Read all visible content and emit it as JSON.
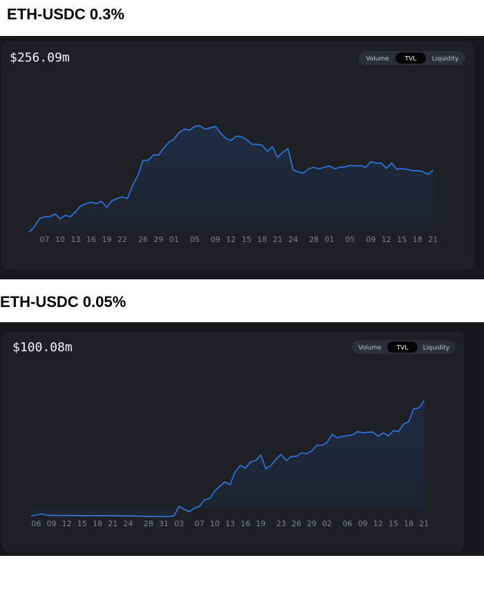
{
  "chart_data": [
    {
      "type": "area",
      "title": "ETH-USDC 0.3%",
      "headline": "$256.09m",
      "toggles": [
        "Volume",
        "TVL",
        "Liquidity"
      ],
      "color": "#2f7bea",
      "ylim": [
        80,
        400
      ],
      "categories": [
        null,
        null,
        null,
        "07",
        null,
        null,
        "10",
        null,
        null,
        "13",
        null,
        null,
        "16",
        null,
        null,
        "19",
        null,
        null,
        "22",
        null,
        null,
        null,
        "26",
        null,
        null,
        "29",
        null,
        null,
        "01",
        null,
        null,
        null,
        "05",
        null,
        null,
        null,
        "09",
        null,
        null,
        "12",
        null,
        null,
        "15",
        null,
        null,
        "18",
        null,
        null,
        "21",
        null,
        null,
        "24",
        null,
        null,
        null,
        "28",
        null,
        null,
        "01",
        null,
        null,
        null,
        "05",
        null,
        null,
        null,
        "09",
        null,
        null,
        "12",
        null,
        null,
        "15",
        null,
        null,
        "18",
        null,
        null,
        "21"
      ],
      "values": [
        124,
        135,
        153,
        157,
        157,
        163,
        153,
        160,
        157,
        168,
        180,
        185,
        188,
        185,
        190,
        177,
        191,
        196,
        199,
        196,
        224,
        244,
        277,
        277,
        288,
        288,
        303,
        315,
        322,
        336,
        343,
        341,
        349,
        350,
        343,
        346,
        349,
        334,
        324,
        319,
        328,
        327,
        321,
        311,
        311,
        309,
        296,
        306,
        283,
        294,
        302,
        256,
        252,
        250,
        259,
        262,
        259,
        262,
        265,
        259,
        262,
        263,
        266,
        265,
        266,
        262,
        274,
        271,
        271,
        260,
        271,
        258,
        259,
        258,
        255,
        255,
        253,
        247,
        256.09
      ]
    },
    {
      "type": "area",
      "title": "ETH-USDC 0.05%",
      "headline": "$100.08m",
      "toggles": [
        "Volume",
        "TVL",
        "Liquidity"
      ],
      "color": "#2f7bea",
      "ylim": [
        0,
        120
      ],
      "categories": [
        null,
        "06",
        null,
        null,
        "09",
        null,
        null,
        "12",
        null,
        null,
        "15",
        null,
        null,
        "18",
        null,
        null,
        "21",
        null,
        null,
        "24",
        null,
        null,
        null,
        "28",
        null,
        null,
        "31",
        null,
        null,
        "03",
        null,
        null,
        null,
        "07",
        null,
        null,
        "10",
        null,
        null,
        "13",
        null,
        null,
        "16",
        null,
        null,
        "19",
        null,
        null,
        null,
        "23",
        null,
        null,
        "26",
        null,
        null,
        "29",
        null,
        null,
        "02",
        null,
        null,
        null,
        "06",
        null,
        null,
        "09",
        null,
        null,
        "12",
        null,
        null,
        "15",
        null,
        null,
        "18",
        null,
        null,
        "21"
      ],
      "values": [
        2.3,
        2.9,
        4.1,
        2.9,
        2.6,
        2.6,
        2.6,
        2.5,
        2.5,
        2.5,
        2.4,
        2.5,
        2.4,
        2.4,
        2.5,
        2.4,
        2.4,
        2.3,
        2.3,
        2.2,
        2.2,
        2.1,
        2.0,
        1.9,
        1.9,
        1.8,
        1.8,
        1.9,
        2.3,
        10.5,
        7.6,
        5.9,
        8.8,
        10.5,
        15.8,
        17.0,
        23.4,
        27.5,
        31.0,
        28.7,
        39.8,
        45.0,
        42.7,
        48.0,
        49.1,
        53.8,
        42.1,
        45.0,
        50.3,
        54.4,
        49.1,
        52.7,
        52.7,
        55.6,
        55.0,
        57.3,
        62.0,
        62.0,
        64.4,
        71.4,
        68.4,
        69.6,
        70.2,
        70.8,
        73.7,
        72.5,
        73.1,
        73.1,
        69.6,
        72.5,
        70.2,
        74.3,
        73.7,
        80.1,
        81.9,
        93.0,
        93.6,
        100.08
      ]
    }
  ]
}
